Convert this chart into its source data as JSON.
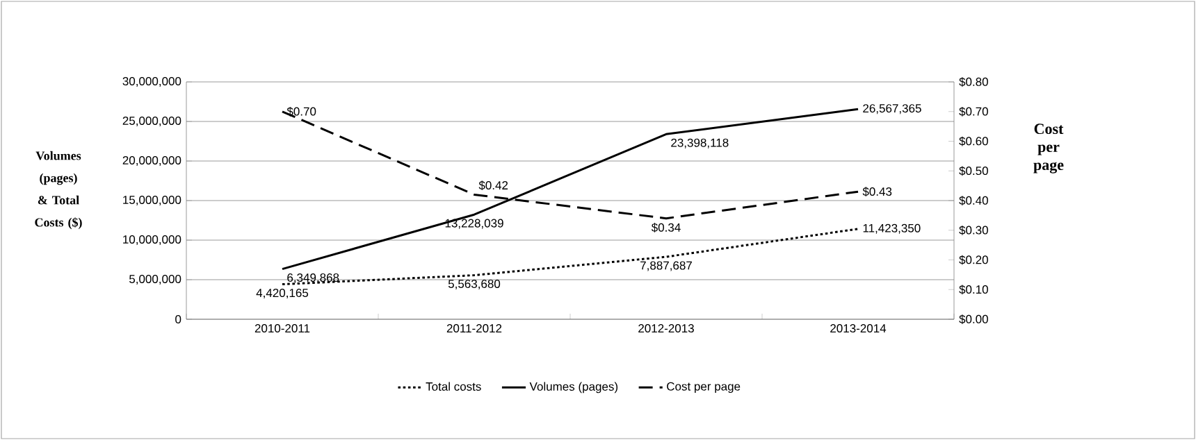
{
  "chart_data": {
    "type": "line",
    "categories": [
      "2010-2011",
      "2011-2012",
      "2012-2013",
      "2013-2014"
    ],
    "ylabel": "Volumes (pages) & Total Costs ($)",
    "y2label": "Cost per page",
    "series": [
      {
        "name": "Total costs",
        "color": "#000000",
        "line_style": "dotted",
        "values": [
          4420165,
          5563680,
          7887687,
          11423350
        ],
        "value_labels": [
          "4,420,165",
          "5,563,680",
          "7,887,687",
          "11,423,350"
        ]
      },
      {
        "name": "Volumes (pages)",
        "color": "#000000",
        "line_style": "solid",
        "values": [
          6349868,
          13228039,
          23398118,
          26567365
        ],
        "value_labels": [
          "6,349,868",
          "13,228,039",
          "23,398,118",
          "26,567,365"
        ]
      },
      {
        "name": "Cost per page",
        "color": "#000000",
        "line_style": "dashed",
        "axis": "y2",
        "values": [
          0.7,
          0.42,
          0.34,
          0.43
        ],
        "value_labels": [
          "$0.70",
          "$0.42",
          "$0.34",
          "$0.43"
        ]
      }
    ],
    "ylim": [
      0,
      30000000
    ],
    "yticks": [
      {
        "value": 0,
        "label": "0"
      },
      {
        "value": 5000000,
        "label": "5,000,000"
      },
      {
        "value": 10000000,
        "label": "10,000,000"
      },
      {
        "value": 15000000,
        "label": "15,000,000"
      },
      {
        "value": 20000000,
        "label": "20,000,000"
      },
      {
        "value": 25000000,
        "label": "25,000,000"
      },
      {
        "value": 30000000,
        "label": "30,000,000"
      }
    ],
    "y2lim": [
      0,
      0.8
    ],
    "y2ticks": [
      {
        "value": 0,
        "label": "$0.00"
      },
      {
        "value": 0.1,
        "label": "$0.10"
      },
      {
        "value": 0.2,
        "label": "$0.20"
      },
      {
        "value": 0.3,
        "label": "$0.30"
      },
      {
        "value": 0.4,
        "label": "$0.40"
      },
      {
        "value": 0.5,
        "label": "$0.50"
      },
      {
        "value": 0.6,
        "label": "$0.60"
      },
      {
        "value": 0.7,
        "label": "$0.70"
      },
      {
        "value": 0.8,
        "label": "$0.80"
      }
    ],
    "grid": "y",
    "legend": "bottom",
    "marker": "none"
  }
}
